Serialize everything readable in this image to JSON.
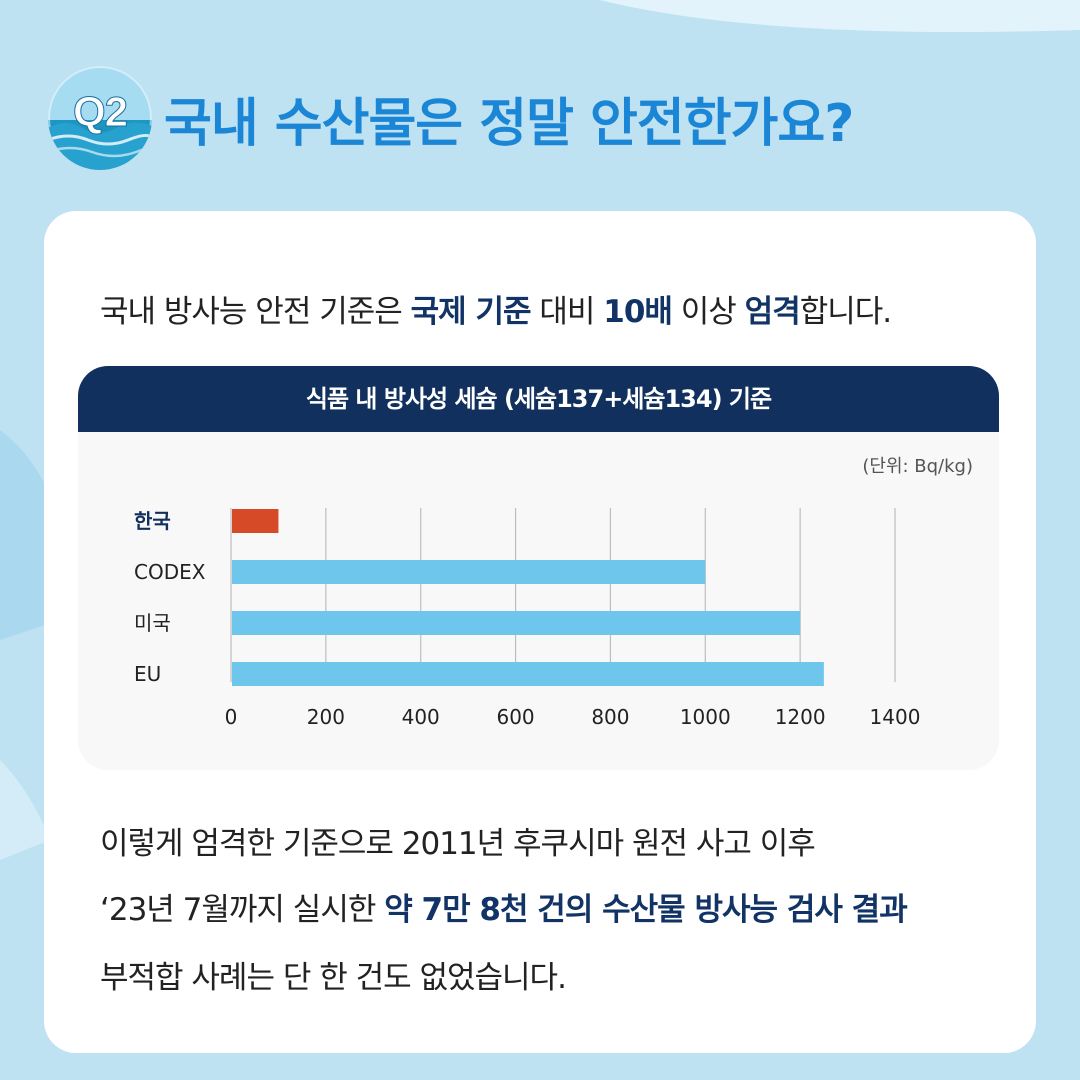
{
  "header": {
    "badge": "Q2",
    "title": "국내 수산물은 정말 안전한가요?"
  },
  "intro": {
    "p1": "국내 방사능 안전 기준은 ",
    "h1": "국제 기준",
    "p2": " 대비 ",
    "h2": "10배",
    "p3": " 이상 ",
    "h3": "엄격",
    "p4": "합니다."
  },
  "chart_data": {
    "type": "bar",
    "orientation": "horizontal",
    "title": "식품 내 방사성 세슘 (세슘137+세슘134) 기준",
    "unit": "(단위: Bq/kg)",
    "categories": [
      "한국",
      "CODEX",
      "미국",
      "EU"
    ],
    "values": [
      100,
      1000,
      1200,
      1250
    ],
    "colors": [
      "#d64a28",
      "#6ec6ec",
      "#6ec6ec",
      "#6ec6ec"
    ],
    "xlim": [
      0,
      1400
    ],
    "xticks": [
      0,
      200,
      400,
      600,
      800,
      1000,
      1200,
      1400
    ],
    "grid": true,
    "highlight_category": "한국"
  },
  "body": {
    "line1": "이렇게 엄격한 기준으로 2011년 후쿠시마 원전 사고 이후",
    "line2_plain": "‘23년 7월까지 실시한 ",
    "line2_bold": "약 7만 8천 건의 수산물 방사능 검사 결과",
    "line3": "부적합 사례는 단 한 건도 없었습니다."
  }
}
